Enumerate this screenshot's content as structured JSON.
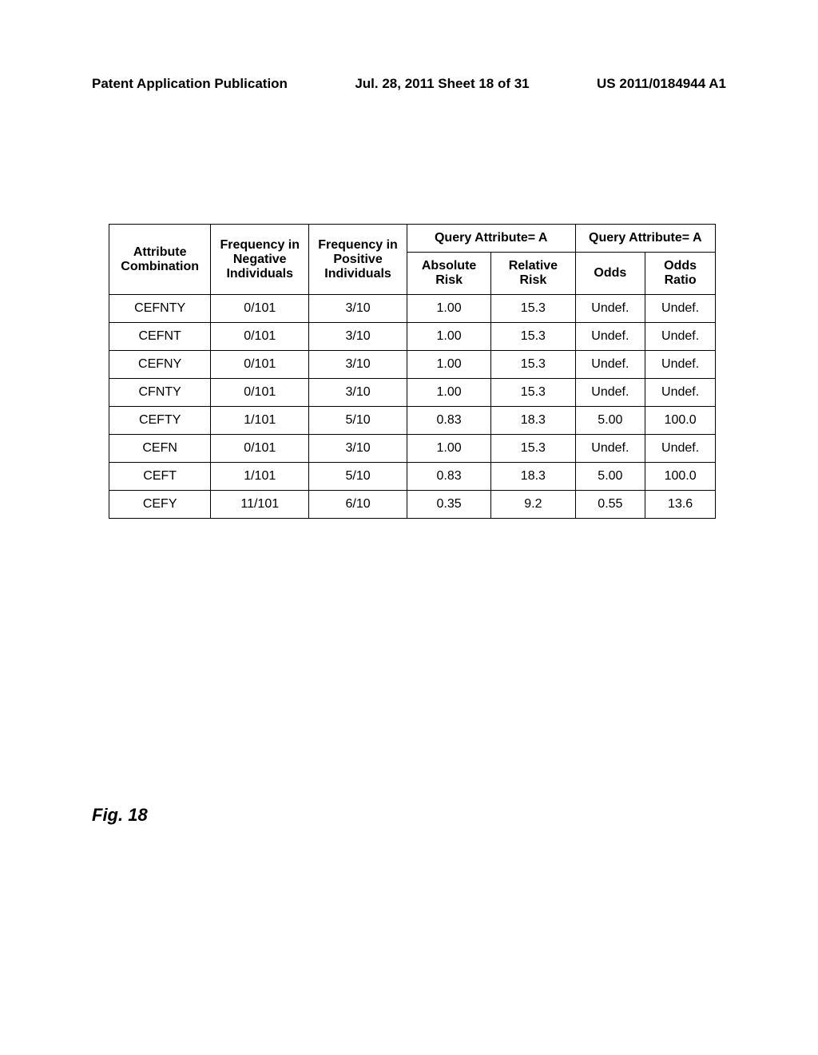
{
  "header": {
    "left": "Patent Application Publication",
    "center": "Jul. 28, 2011  Sheet 18 of 31",
    "right": "US 2011/0184944 A1"
  },
  "table": {
    "columns": {
      "attribute_combination": "Attribute Combination",
      "freq_negative": "Frequency in Negative Individuals",
      "freq_positive": "Frequency in Positive Individuals",
      "query_attr_a1": "Query Attribute= A",
      "query_attr_a2": "Query Attribute= A",
      "absolute_risk": "Absolute Risk",
      "relative_risk": "Relative Risk",
      "odds": "Odds",
      "odds_ratio": "Odds Ratio"
    },
    "rows": [
      {
        "attr": "CEFNTY",
        "freq_neg": "0/101",
        "freq_pos": "3/10",
        "abs_risk": "1.00",
        "rel_risk": "15.3",
        "odds": "Undef.",
        "odds_ratio": "Undef."
      },
      {
        "attr": "CEFNT",
        "freq_neg": "0/101",
        "freq_pos": "3/10",
        "abs_risk": "1.00",
        "rel_risk": "15.3",
        "odds": "Undef.",
        "odds_ratio": "Undef."
      },
      {
        "attr": "CEFNY",
        "freq_neg": "0/101",
        "freq_pos": "3/10",
        "abs_risk": "1.00",
        "rel_risk": "15.3",
        "odds": "Undef.",
        "odds_ratio": "Undef."
      },
      {
        "attr": "CFNTY",
        "freq_neg": "0/101",
        "freq_pos": "3/10",
        "abs_risk": "1.00",
        "rel_risk": "15.3",
        "odds": "Undef.",
        "odds_ratio": "Undef."
      },
      {
        "attr": "CEFTY",
        "freq_neg": "1/101",
        "freq_pos": "5/10",
        "abs_risk": "0.83",
        "rel_risk": "18.3",
        "odds": "5.00",
        "odds_ratio": "100.0"
      },
      {
        "attr": "CEFN",
        "freq_neg": "0/101",
        "freq_pos": "3/10",
        "abs_risk": "1.00",
        "rel_risk": "15.3",
        "odds": "Undef.",
        "odds_ratio": "Undef."
      },
      {
        "attr": "CEFT",
        "freq_neg": "1/101",
        "freq_pos": "5/10",
        "abs_risk": "0.83",
        "rel_risk": "18.3",
        "odds": "5.00",
        "odds_ratio": "100.0"
      },
      {
        "attr": "CEFY",
        "freq_neg": "11/101",
        "freq_pos": "6/10",
        "abs_risk": "0.35",
        "rel_risk": "9.2",
        "odds": "0.55",
        "odds_ratio": "13.6"
      }
    ]
  },
  "figure_label": "Fig.  18"
}
